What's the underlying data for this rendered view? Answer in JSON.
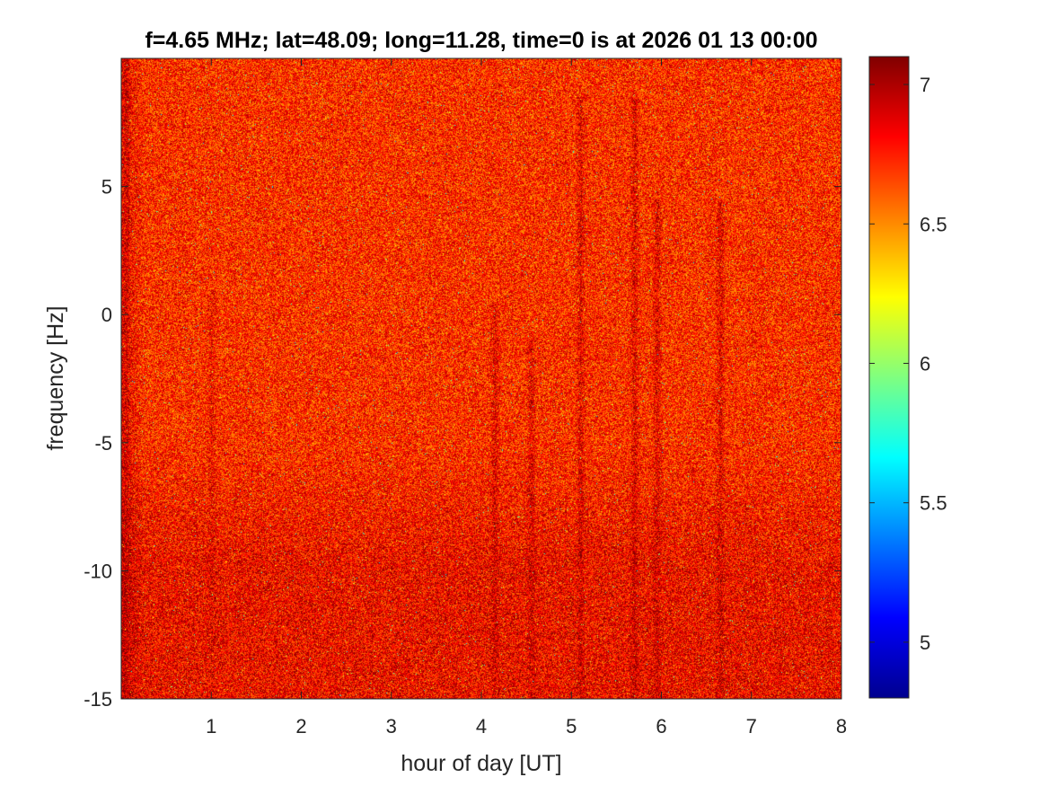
{
  "chart_data": {
    "type": "heatmap",
    "title": "f=4.65 MHz;  lat=48.09; long=11.28, time=0 is at 2026 01 13 00:00",
    "xlabel": "hour of day [UT]",
    "ylabel": "frequency [Hz]",
    "xlim": [
      0,
      8
    ],
    "ylim": [
      -15,
      10
    ],
    "xticks": [
      1,
      2,
      3,
      4,
      5,
      6,
      7,
      8
    ],
    "xtick_labels": [
      "1",
      "2",
      "3",
      "4",
      "5",
      "6",
      "7",
      "8"
    ],
    "yticks": [
      5,
      0,
      -5,
      -10,
      -15
    ],
    "ytick_labels": [
      "5",
      "0",
      "-5",
      "-10",
      "-15"
    ],
    "colorbar": {
      "colormap": "jet",
      "range": [
        4.8,
        7.1
      ],
      "ticks": [
        7,
        6.5,
        6,
        5.5,
        5
      ],
      "tick_labels": [
        "7",
        "6.5",
        "6",
        "5.5",
        "5"
      ]
    },
    "features": [
      {
        "hour": 5.1,
        "freq_top": 8.5,
        "freq_bottom": -15,
        "level": 7.0
      },
      {
        "hour": 5.7,
        "freq_top": 8.5,
        "freq_bottom": -15,
        "level": 7.0
      },
      {
        "hour": 5.95,
        "freq_top": 4.5,
        "freq_bottom": -15,
        "level": 7.0
      },
      {
        "hour": 6.65,
        "freq_top": 4.5,
        "freq_bottom": -15,
        "level": 7.0
      },
      {
        "hour": 4.15,
        "freq_top": 0.5,
        "freq_bottom": -15,
        "level": 7.0
      },
      {
        "hour": 4.55,
        "freq_top": -1.0,
        "freq_bottom": -15,
        "level": 7.0
      },
      {
        "hour": 1.0,
        "freq_top": 1.0,
        "freq_bottom": -15,
        "level": 6.9
      },
      {
        "hour": 0.05,
        "freq_top": 10,
        "freq_bottom": -15,
        "level": 7.0
      }
    ],
    "grid": false,
    "legend": "none"
  }
}
